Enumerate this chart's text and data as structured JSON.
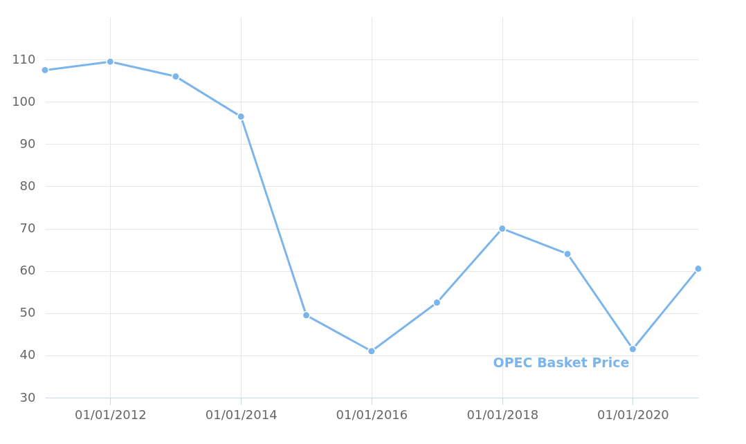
{
  "chart_data": {
    "type": "line",
    "x": [
      "2011-01-01",
      "2012-01-01",
      "2013-01-01",
      "2014-01-01",
      "2015-01-01",
      "2016-01-01",
      "2017-01-01",
      "2018-01-01",
      "2019-01-01",
      "2020-01-01",
      "2021-01-01"
    ],
    "series": [
      {
        "name": "OPEC Basket Price",
        "color": "#7cb5ec",
        "values": [
          107.5,
          109.5,
          106,
          96.5,
          49.5,
          41,
          52.5,
          70,
          64,
          41.5,
          60.5
        ]
      }
    ],
    "xlim": [
      "2011-01-01",
      "2021-01-01"
    ],
    "xticks": [
      {
        "value": "2012-01-01",
        "label": "01/01/2012"
      },
      {
        "value": "2014-01-01",
        "label": "01/01/2014"
      },
      {
        "value": "2016-01-01",
        "label": "01/01/2016"
      },
      {
        "value": "2018-01-01",
        "label": "01/01/2018"
      },
      {
        "value": "2020-01-01",
        "label": "01/01/2020"
      }
    ],
    "ylim": [
      30,
      120
    ],
    "yticks": [
      30,
      40,
      50,
      60,
      70,
      80,
      90,
      100,
      110
    ],
    "grid": true,
    "marker": "circle",
    "line_style": "solid"
  }
}
